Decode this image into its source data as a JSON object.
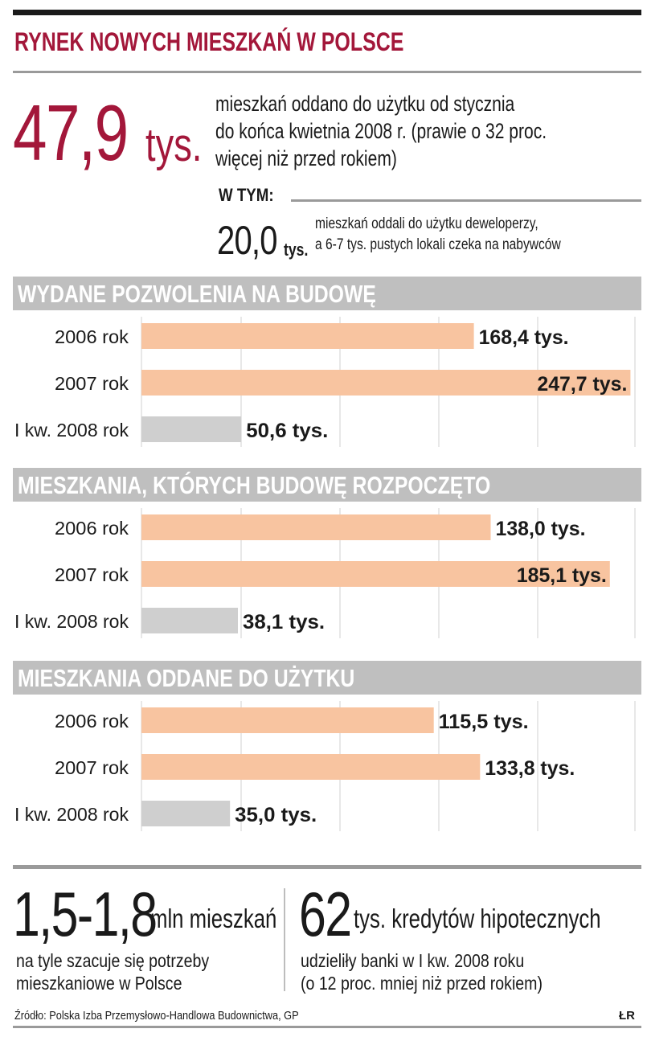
{
  "title": "RYNEK NOWYCH MIESZKAŃ W POLSCE",
  "headline": {
    "value": "47,9",
    "unit": "tys.",
    "desc_lines": [
      "mieszkań oddano do użytku od stycznia",
      "do końca kwietnia 2008 r. (prawie  o 32 proc.",
      "więcej niż przed rokiem)"
    ]
  },
  "w_tym": {
    "label": "W TYM:",
    "value": "20,0",
    "unit": "tys.",
    "desc_lines": [
      "mieszkań oddali do użytku deweloperzy,",
      "a 6-7 tys. pustych lokali czeka na nabywców"
    ]
  },
  "colors": {
    "accent": "#a3173a",
    "bar_orange": "#f8c4a0",
    "bar_gray": "#cfcfcf",
    "header_gray": "#bfbfbf",
    "gridline": "#d0d0d0"
  },
  "chart_data": [
    {
      "type": "bar",
      "orientation": "horizontal",
      "title": "WYDANE POZWOLENIA NA BUDOWĘ",
      "categories": [
        "2006 rok",
        "2007 rok",
        "I kw. 2008 rok"
      ],
      "values": [
        168.4,
        247.7,
        50.6
      ],
      "value_labels": [
        "168,4 tys.",
        "247,7 tys.",
        "50,6 tys."
      ],
      "unit": "tys.",
      "xlim": [
        0,
        250
      ]
    },
    {
      "type": "bar",
      "orientation": "horizontal",
      "title": "MIESZKANIA, KTÓRYCH BUDOWĘ ROZPOCZĘTO",
      "categories": [
        "2006 rok",
        "2007 rok",
        "I kw. 2008 rok"
      ],
      "values": [
        138.0,
        185.1,
        38.1
      ],
      "value_labels": [
        "138,0 tys.",
        "185,1 tys.",
        "38,1 tys."
      ],
      "unit": "tys.",
      "xlim": [
        0,
        195
      ]
    },
    {
      "type": "bar",
      "orientation": "horizontal",
      "title": "MIESZKANIA ODDANE DO UŻYTKU",
      "categories": [
        "2006 rok",
        "2007 rok",
        "I kw. 2008 rok"
      ],
      "values": [
        115.5,
        133.8,
        35.0
      ],
      "value_labels": [
        "115,5 tys.",
        "133,8 tys.",
        "35,0 tys."
      ],
      "unit": "tys.",
      "xlim": [
        0,
        195
      ]
    }
  ],
  "footer": {
    "left": {
      "value": "1,5-1,8",
      "unit": "mln mieszkań",
      "desc_lines": [
        "na tyle szacuje się potrzeby",
        "mieszkaniowe w Polsce"
      ]
    },
    "right": {
      "value": "62",
      "unit": "tys. kredytów hipotecznych",
      "desc_lines": [
        "udzieliły banki w I kw. 2008 roku",
        "(o 12 proc. mniej niż przed rokiem)"
      ]
    },
    "source": "Źródło: Polska Izba Przemysłowo-Handlowa Budownictwa, GP",
    "signature": "ŁR"
  }
}
